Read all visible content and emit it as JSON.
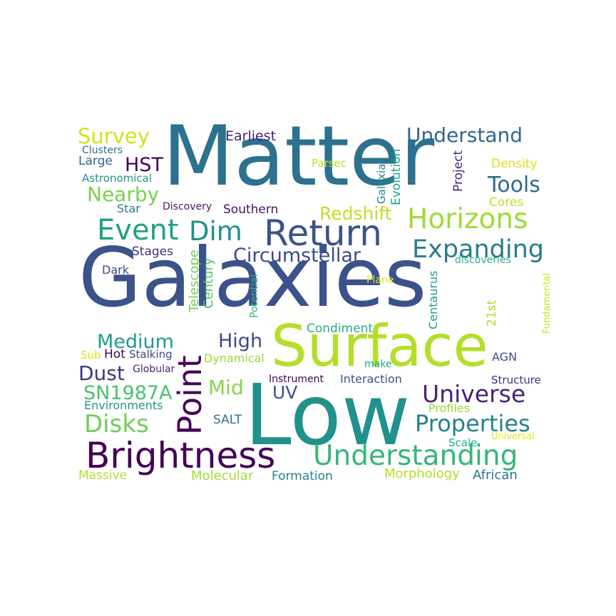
{
  "wordcloud": {
    "w1": {
      "text": "Galaxies",
      "color": "#3b528b"
    },
    "w2": {
      "text": "Matter",
      "color": "#2c728e"
    },
    "w3": {
      "text": "Low",
      "color": "#21918c"
    },
    "w4": {
      "text": "Surface",
      "color": "#b5de2b"
    },
    "w5": {
      "text": "Brightness",
      "color": "#440154"
    },
    "w6": {
      "text": "Understanding",
      "color": "#35b779"
    },
    "w7": {
      "text": "Return",
      "color": "#3b528b"
    },
    "w8": {
      "text": "Horizons",
      "color": "#a0da39"
    },
    "w9": {
      "text": "Event",
      "color": "#1fa187"
    },
    "w10": {
      "text": "Dim",
      "color": "#21918c"
    },
    "w11": {
      "text": "Expanding",
      "color": "#287c8e"
    },
    "w12": {
      "text": "Point",
      "color": "#440154"
    },
    "w13": {
      "text": "Universe",
      "color": "#482475"
    },
    "w14": {
      "text": "Properties",
      "color": "#26828e"
    },
    "w15": {
      "text": "Circumstellar",
      "color": "#3e4989"
    },
    "w16": {
      "text": "Understand",
      "color": "#31688e"
    },
    "w17": {
      "text": "Survey",
      "color": "#d2e21b"
    },
    "w18": {
      "text": "Nearby",
      "color": "#7ad151"
    },
    "w19": {
      "text": "Tools",
      "color": "#31688e"
    },
    "w20": {
      "text": "Medium",
      "color": "#1f9e89"
    },
    "w21": {
      "text": "High",
      "color": "#3e4989"
    },
    "w22": {
      "text": "Dust",
      "color": "#46327e"
    },
    "w23": {
      "text": "SN1987A",
      "color": "#4ac16d"
    },
    "w24": {
      "text": "Disks",
      "color": "#6ece58"
    },
    "w25": {
      "text": "Mid",
      "color": "#86d549"
    },
    "w26": {
      "text": "UV",
      "color": "#3b528b"
    },
    "w27": {
      "text": "HST",
      "color": "#440154"
    },
    "w28": {
      "text": "Redshift",
      "color": "#c2df23"
    },
    "w29": {
      "text": "Earliest",
      "color": "#482173"
    },
    "w30": {
      "text": "Clusters",
      "color": "#2c728e"
    },
    "w31": {
      "text": "Large",
      "color": "#34618d"
    },
    "w32": {
      "text": "Astronomical",
      "color": "#21918c"
    },
    "w33": {
      "text": "Star",
      "color": "#2a788e"
    },
    "w34": {
      "text": "Discovery",
      "color": "#48186a"
    },
    "w35": {
      "text": "Southern",
      "color": "#471063"
    },
    "w36": {
      "text": "Parsec",
      "color": "#bddf26"
    },
    "w37": {
      "text": "Density",
      "color": "#d8e219"
    },
    "w38": {
      "text": "Cores",
      "color": "#bddf26"
    },
    "w39": {
      "text": "Galaxian",
      "color": "#25848e"
    },
    "w40": {
      "text": "Evolution",
      "color": "#20a386"
    },
    "w41": {
      "text": "Project",
      "color": "#482878"
    },
    "w42": {
      "text": "Stages",
      "color": "#472c7a"
    },
    "w43": {
      "text": "Dark",
      "color": "#3e4989"
    },
    "w44": {
      "text": "Telescope",
      "color": "#73d056"
    },
    "w45": {
      "text": "Century",
      "color": "#54c568"
    },
    "w46": {
      "text": "Potential",
      "color": "#2db27d"
    },
    "w47": {
      "text": "Plane",
      "color": "#e5e419"
    },
    "w48": {
      "text": "discoveries",
      "color": "#2ab07f"
    },
    "w49": {
      "text": "Centaurus",
      "color": "#1e9b8a"
    },
    "w50": {
      "text": "21st",
      "color": "#addc30"
    },
    "w51": {
      "text": "Fundamental",
      "color": "#cde11d"
    },
    "w52": {
      "text": "Condiment",
      "color": "#26ad81"
    },
    "w53": {
      "text": "Sub",
      "color": "#e5e419"
    },
    "w54": {
      "text": "Hot",
      "color": "#440154"
    },
    "w55": {
      "text": "Stalking",
      "color": "#3e4989"
    },
    "w56": {
      "text": "Dynamical",
      "color": "#9bd93c"
    },
    "w57": {
      "text": "Globular",
      "color": "#482475"
    },
    "w58": {
      "text": "make",
      "color": "#1fa188"
    },
    "w59": {
      "text": "AGN",
      "color": "#3e4989"
    },
    "w60": {
      "text": "Instrument",
      "color": "#440154"
    },
    "w61": {
      "text": "Interaction",
      "color": "#3b528b"
    },
    "w62": {
      "text": "Structure",
      "color": "#472d7b"
    },
    "w63": {
      "text": "Environments",
      "color": "#1f9a8a"
    },
    "w64": {
      "text": "Profiles",
      "color": "#9bd93c"
    },
    "w65": {
      "text": "SALT",
      "color": "#2c728e"
    },
    "w66": {
      "text": "Universal",
      "color": "#e7e419"
    },
    "w67": {
      "text": "Scale",
      "color": "#26ad81"
    },
    "w68": {
      "text": "Massive",
      "color": "#b5de2b"
    },
    "w69": {
      "text": "Molecular",
      "color": "#a5db36"
    },
    "w70": {
      "text": "Formation",
      "color": "#26828e"
    },
    "w71": {
      "text": "Morphology",
      "color": "#b5de2b"
    },
    "w72": {
      "text": "African",
      "color": "#2a768e"
    }
  }
}
